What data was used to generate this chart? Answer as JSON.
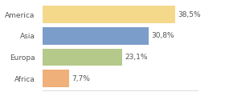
{
  "categories": [
    "America",
    "Asia",
    "Europa",
    "Africa"
  ],
  "values": [
    38.5,
    30.8,
    23.1,
    7.7
  ],
  "labels": [
    "38,5%",
    "30,8%",
    "23,1%",
    "7,7%"
  ],
  "bar_colors": [
    "#f5d98b",
    "#7b9dc9",
    "#b5c98a",
    "#f0b07a"
  ],
  "background_color": "#ffffff",
  "xlim": [
    0,
    45
  ],
  "bar_height": 0.82,
  "label_fontsize": 6.5,
  "tick_fontsize": 6.5,
  "figsize": [
    2.8,
    1.2
  ],
  "dpi": 100
}
